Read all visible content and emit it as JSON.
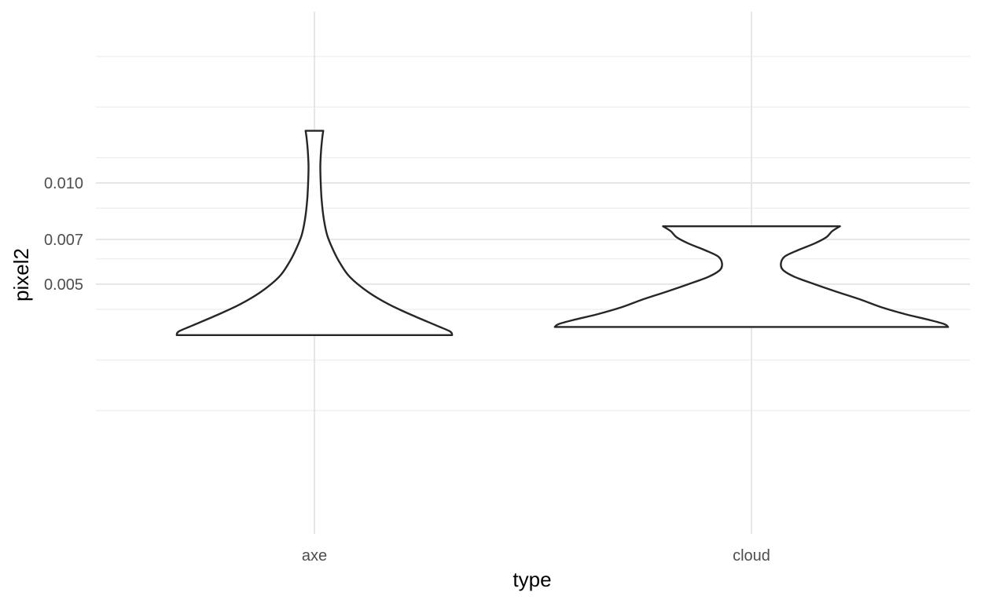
{
  "chart_data": {
    "type": "violin",
    "title": "",
    "xlabel": "type",
    "ylabel": "pixel2",
    "categories": [
      "axe",
      "cloud"
    ],
    "y_ticks": [
      0.005,
      0.007,
      0.01
    ],
    "y_tick_labels": [
      "0.005",
      "0.007",
      "0.010"
    ],
    "y_scale": "sqrt",
    "ylim": [
      0.003,
      0.0136
    ],
    "grid": true,
    "legend": "none",
    "violins": [
      {
        "category": "axe",
        "ymin": 0.00313,
        "ymax": 0.01325,
        "density_profile": [
          {
            "y": 0.00313,
            "width": 0.7
          },
          {
            "y": 0.00325,
            "width": 0.69
          },
          {
            "y": 0.00345,
            "width": 0.62
          },
          {
            "y": 0.0038,
            "width": 0.5
          },
          {
            "y": 0.0042,
            "width": 0.38
          },
          {
            "y": 0.0047,
            "width": 0.27
          },
          {
            "y": 0.0053,
            "width": 0.18
          },
          {
            "y": 0.0059,
            "width": 0.13
          },
          {
            "y": 0.0065,
            "width": 0.095
          },
          {
            "y": 0.0072,
            "width": 0.065
          },
          {
            "y": 0.008,
            "width": 0.048
          },
          {
            "y": 0.009,
            "width": 0.037
          },
          {
            "y": 0.01,
            "width": 0.032
          },
          {
            "y": 0.011,
            "width": 0.03
          },
          {
            "y": 0.012,
            "width": 0.034
          },
          {
            "y": 0.0128,
            "width": 0.04
          },
          {
            "y": 0.01325,
            "width": 0.045
          }
        ]
      },
      {
        "category": "cloud",
        "ymin": 0.0034,
        "ymax": 0.00765,
        "density_profile": [
          {
            "y": 0.0034,
            "width": 1.0
          },
          {
            "y": 0.0035,
            "width": 0.98
          },
          {
            "y": 0.00365,
            "width": 0.9
          },
          {
            "y": 0.00385,
            "width": 0.78
          },
          {
            "y": 0.0041,
            "width": 0.66
          },
          {
            "y": 0.0044,
            "width": 0.55
          },
          {
            "y": 0.0047,
            "width": 0.43
          },
          {
            "y": 0.005,
            "width": 0.32
          },
          {
            "y": 0.0053,
            "width": 0.22
          },
          {
            "y": 0.0056,
            "width": 0.16
          },
          {
            "y": 0.0059,
            "width": 0.15
          },
          {
            "y": 0.0062,
            "width": 0.17
          },
          {
            "y": 0.0065,
            "width": 0.24
          },
          {
            "y": 0.0068,
            "width": 0.32
          },
          {
            "y": 0.0071,
            "width": 0.38
          },
          {
            "y": 0.0074,
            "width": 0.41
          },
          {
            "y": 0.00765,
            "width": 0.45
          }
        ]
      }
    ]
  }
}
